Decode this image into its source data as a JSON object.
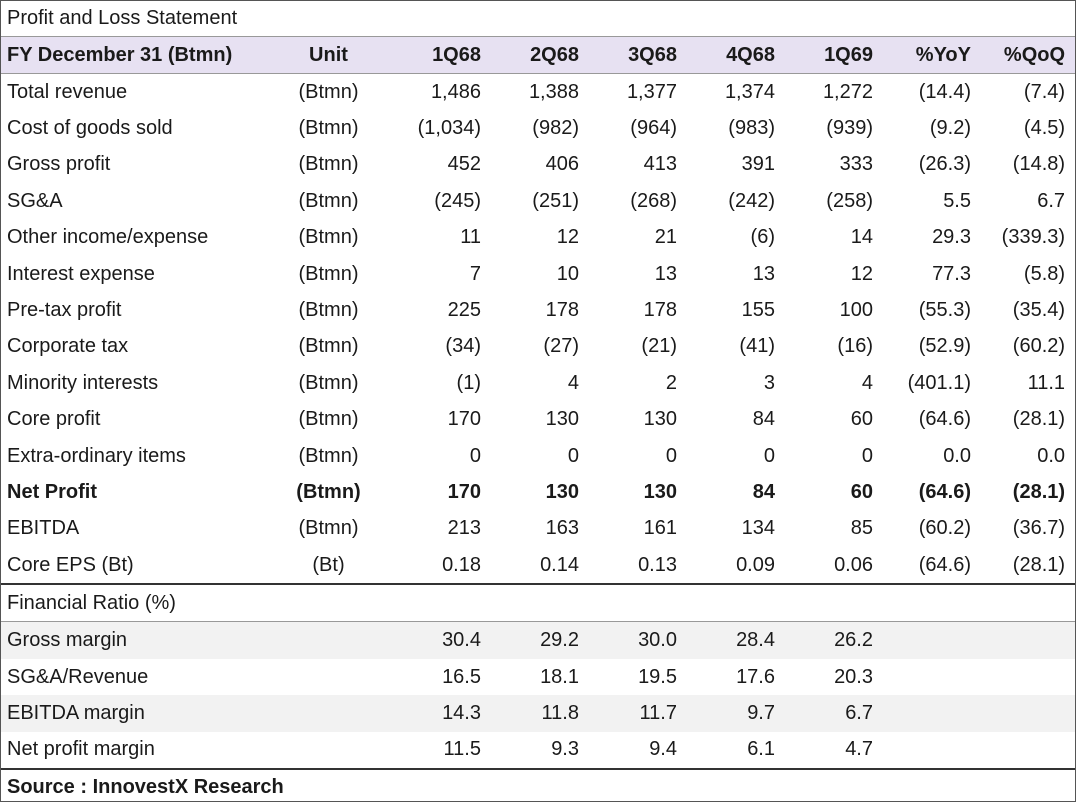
{
  "title": "Profit and Loss Statement",
  "header": {
    "label": "FY December 31 (Btmn)",
    "unit": "Unit",
    "periods": [
      "1Q68",
      "2Q68",
      "3Q68",
      "4Q68",
      "1Q69"
    ],
    "yoy": "%YoY",
    "qoq": "%QoQ"
  },
  "rows": [
    {
      "label": "Total revenue",
      "unit": "(Btmn)",
      "values": [
        "1,486",
        "1,388",
        "1,377",
        "1,374",
        "1,272"
      ],
      "yoy": "(14.4)",
      "qoq": "(7.4)"
    },
    {
      "label": "Cost of goods sold",
      "unit": "(Btmn)",
      "values": [
        "(1,034)",
        "(982)",
        "(964)",
        "(983)",
        "(939)"
      ],
      "yoy": "(9.2)",
      "qoq": "(4.5)"
    },
    {
      "label": "Gross profit",
      "unit": "(Btmn)",
      "values": [
        "452",
        "406",
        "413",
        "391",
        "333"
      ],
      "yoy": "(26.3)",
      "qoq": "(14.8)"
    },
    {
      "label": "SG&A",
      "unit": "(Btmn)",
      "values": [
        "(245)",
        "(251)",
        "(268)",
        "(242)",
        "(258)"
      ],
      "yoy": "5.5",
      "qoq": "6.7"
    },
    {
      "label": "Other income/expense",
      "unit": "(Btmn)",
      "values": [
        "11",
        "12",
        "21",
        "(6)",
        "14"
      ],
      "yoy": "29.3",
      "qoq": "(339.3)"
    },
    {
      "label": "Interest expense",
      "unit": "(Btmn)",
      "values": [
        "7",
        "10",
        "13",
        "13",
        "12"
      ],
      "yoy": "77.3",
      "qoq": "(5.8)"
    },
    {
      "label": "Pre-tax profit",
      "unit": "(Btmn)",
      "values": [
        "225",
        "178",
        "178",
        "155",
        "100"
      ],
      "yoy": "(55.3)",
      "qoq": "(35.4)"
    },
    {
      "label": "Corporate tax",
      "unit": "(Btmn)",
      "values": [
        "(34)",
        "(27)",
        "(21)",
        "(41)",
        "(16)"
      ],
      "yoy": "(52.9)",
      "qoq": "(60.2)"
    },
    {
      "label": "Minority interests",
      "unit": "(Btmn)",
      "values": [
        "(1)",
        "4",
        "2",
        "3",
        "4"
      ],
      "yoy": "(401.1)",
      "qoq": "11.1"
    },
    {
      "label": "Core profit",
      "unit": "(Btmn)",
      "values": [
        "170",
        "130",
        "130",
        "84",
        "60"
      ],
      "yoy": "(64.6)",
      "qoq": "(28.1)"
    },
    {
      "label": "Extra-ordinary items",
      "unit": "(Btmn)",
      "values": [
        "0",
        "0",
        "0",
        "0",
        "0"
      ],
      "yoy": "0.0",
      "qoq": "0.0"
    },
    {
      "label": "Net Profit",
      "unit": "(Btmn)",
      "values": [
        "170",
        "130",
        "130",
        "84",
        "60"
      ],
      "yoy": "(64.6)",
      "qoq": "(28.1)",
      "bold": true
    },
    {
      "label": "EBITDA",
      "unit": "(Btmn)",
      "values": [
        "213",
        "163",
        "161",
        "134",
        "85"
      ],
      "yoy": "(60.2)",
      "qoq": "(36.7)"
    },
    {
      "label": "Core EPS (Bt)",
      "unit": "(Bt)",
      "values": [
        "0.18",
        "0.14",
        "0.13",
        "0.09",
        "0.06"
      ],
      "yoy": "(64.6)",
      "qoq": "(28.1)"
    }
  ],
  "ratios_title": "Financial Ratio (%)",
  "ratios": [
    {
      "label": "Gross margin",
      "values": [
        "30.4",
        "29.2",
        "30.0",
        "28.4",
        "26.2"
      ]
    },
    {
      "label": "SG&A/Revenue",
      "values": [
        "16.5",
        "18.1",
        "19.5",
        "17.6",
        "20.3"
      ]
    },
    {
      "label": "EBITDA margin",
      "values": [
        "14.3",
        "11.8",
        "11.7",
        "9.7",
        "6.7"
      ]
    },
    {
      "label": "Net profit margin",
      "values": [
        "11.5",
        "9.3",
        "9.4",
        "6.1",
        "4.7"
      ]
    }
  ],
  "source": "Source : InnovestX Research",
  "colors": {
    "header_bg": "#e7e1f2",
    "shade_bg": "#f2f2f2"
  }
}
